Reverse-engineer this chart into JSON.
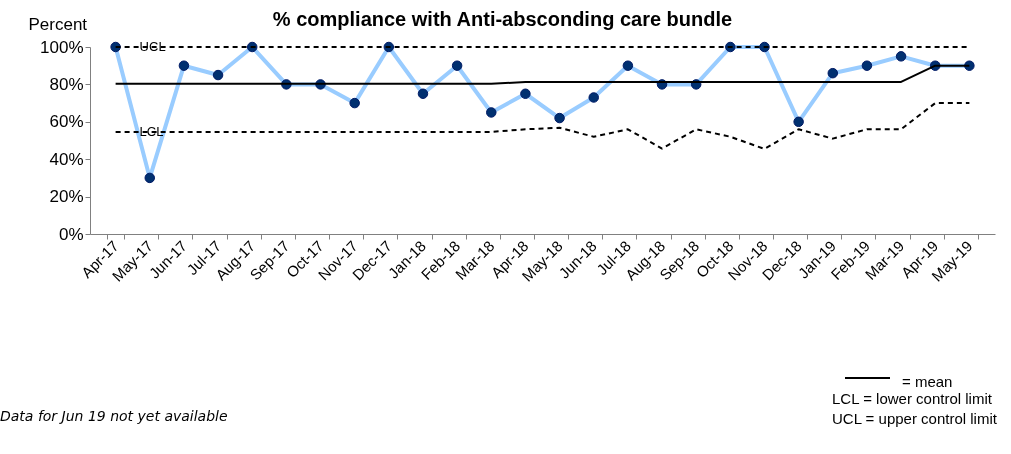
{
  "chart_data": {
    "type": "line",
    "title": "% compliance with Anti-absconding care bundle",
    "ylabel": "Percent",
    "categories": [
      "Apr-17",
      "May-17",
      "Jun-17",
      "Jul-17",
      "Aug-17",
      "Sep-17",
      "Oct-17",
      "Nov-17",
      "Dec-17",
      "Jan-18",
      "Feb-18",
      "Mar-18",
      "Apr-18",
      "May-18",
      "Jun-18",
      "Jul-18",
      "Aug-18",
      "Sep-18",
      "Oct-18",
      "Nov-18",
      "Dec-18",
      "Jan-19",
      "Feb-19",
      "Mar-19",
      "Apr-19",
      "May-19"
    ],
    "series": [
      {
        "color": "#99ccff",
        "marker": "circle",
        "line_style": "solid",
        "values": [
          100,
          30,
          90,
          85,
          100,
          80,
          80,
          70,
          100,
          75,
          90,
          65,
          75,
          62,
          73,
          90,
          80,
          80,
          100,
          100,
          60,
          86,
          90,
          95,
          90,
          90
        ]
      },
      {
        "name": "= mean",
        "color": "#000000",
        "marker": "none",
        "line_style": "solid",
        "values": [
          80.3,
          80.3,
          80.3,
          80.3,
          80.3,
          80.3,
          80.3,
          80.3,
          80.3,
          80.3,
          80.3,
          80.3,
          81.3,
          81.3,
          81.3,
          81.3,
          81.3,
          81.3,
          81.3,
          81.3,
          81.3,
          81.3,
          81.3,
          81.3,
          90,
          90
        ]
      },
      {
        "name": "UCL",
        "color": "#000000",
        "marker": "none",
        "line_style": "dashed",
        "values": [
          100,
          100,
          100,
          100,
          100,
          100,
          100,
          100,
          100,
          100,
          100,
          100,
          100,
          100,
          100,
          100,
          100,
          100,
          100,
          100,
          100,
          100,
          100,
          100,
          100,
          100
        ]
      },
      {
        "name": "LCL",
        "color": "#000000",
        "marker": "none",
        "line_style": "dashed",
        "values": [
          54.6,
          54.6,
          54.6,
          54.6,
          54.6,
          54.6,
          54.6,
          54.6,
          54.6,
          54.6,
          54.6,
          54.6,
          56,
          56.8,
          52,
          56,
          45.7,
          56,
          52,
          45.5,
          56,
          51,
          56,
          56,
          70,
          70
        ]
      }
    ],
    "ylim": [
      0,
      100
    ],
    "yticks": [
      {
        "value": 0,
        "label": "0%"
      },
      {
        "value": 20,
        "label": "20%"
      },
      {
        "value": 40,
        "label": "40%"
      },
      {
        "value": 60,
        "label": "60%"
      },
      {
        "value": 80,
        "label": "80%"
      },
      {
        "value": 100,
        "label": "100%"
      }
    ],
    "grid": false,
    "legend": "bottom right",
    "annotations": [
      "Data for Jun 19 not yet available",
      "LCL = lower control limit",
      "UCL = upper control limit"
    ]
  }
}
